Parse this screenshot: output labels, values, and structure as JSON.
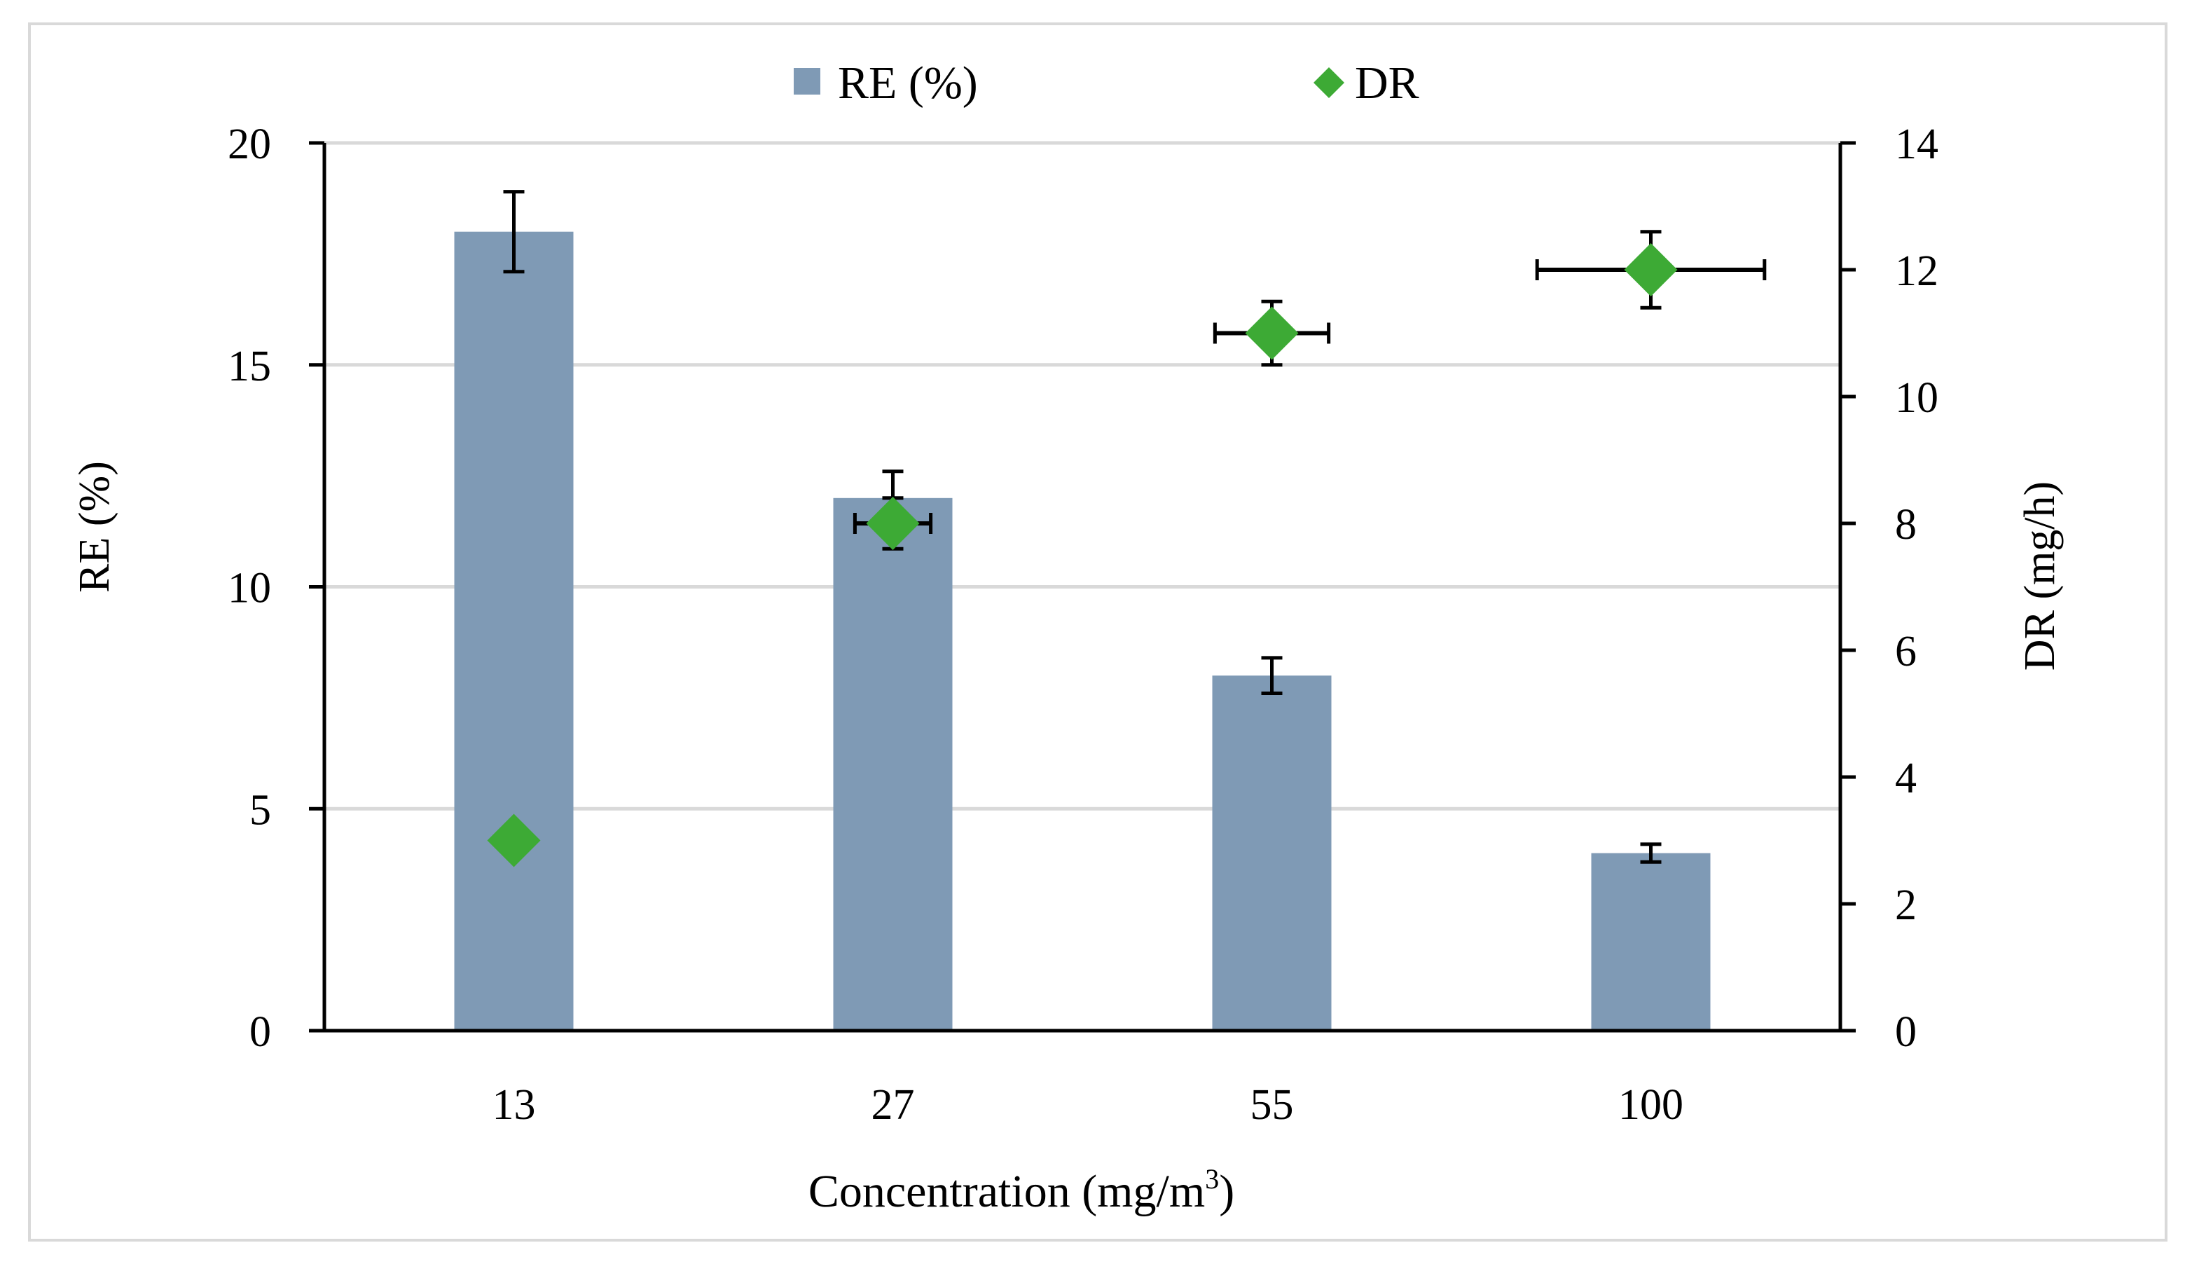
{
  "chart_data": {
    "type": "bar",
    "title": "",
    "xlabel": "Concentration (mg/m",
    "xlabel_sup": "3",
    "xlabel_end": ")",
    "ylabel": "RE (%)",
    "y2label": "DR (mg/h)",
    "categories": [
      "13",
      "27",
      "55",
      "100"
    ],
    "ylim": [
      0,
      20
    ],
    "y2lim": [
      0,
      14
    ],
    "yticks": [
      "0",
      "5",
      "10",
      "15",
      "20"
    ],
    "y2ticks": [
      "0",
      "2",
      "4",
      "6",
      "8",
      "10",
      "12",
      "14"
    ],
    "grid": true,
    "legend_position": "top",
    "series": [
      {
        "name": "RE (%)",
        "type": "bar",
        "axis": "left",
        "color": "#7f9ab5",
        "values": [
          18,
          12,
          8,
          4
        ],
        "errors": [
          0.9,
          0.6,
          0.4,
          0.2
        ]
      },
      {
        "name": "DR",
        "type": "scatter",
        "axis": "right",
        "marker": "diamond",
        "color": "#3daa35",
        "values": [
          3,
          8,
          11,
          12
        ],
        "y_errors": [
          0.1,
          0.4,
          0.5,
          0.6
        ],
        "x_errors": [
          0,
          0.1,
          0.15,
          0.3
        ]
      }
    ]
  }
}
